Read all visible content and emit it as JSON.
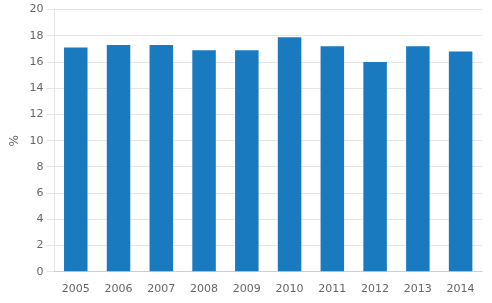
{
  "chart_data": {
    "type": "bar",
    "ylabel": "%",
    "categories": [
      "2005",
      "2006",
      "2007",
      "2008",
      "2009",
      "2010",
      "2011",
      "2012",
      "2013",
      "2014"
    ],
    "values": [
      17.1,
      17.3,
      17.3,
      16.9,
      16.9,
      17.9,
      17.2,
      16.0,
      17.2,
      16.8
    ],
    "color": "#1a7abf",
    "ylim": [
      0,
      20
    ],
    "yticks": [
      0,
      2,
      4,
      6,
      8,
      10,
      12,
      14,
      16,
      18,
      20
    ],
    "grid": true
  }
}
